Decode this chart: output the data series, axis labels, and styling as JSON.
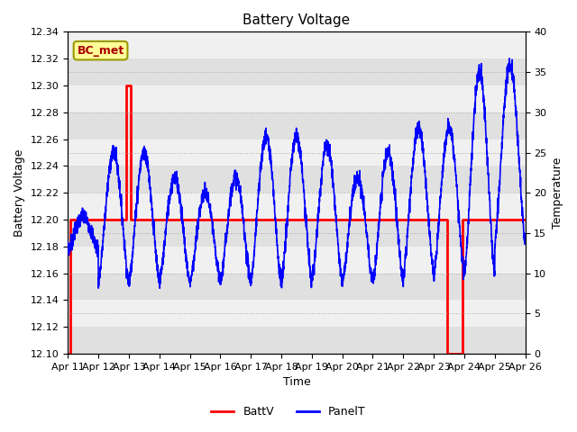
{
  "title": "Battery Voltage",
  "xlabel": "Time",
  "ylabel_left": "Battery Voltage",
  "ylabel_right": "Temperature",
  "xlim": [
    0,
    15
  ],
  "ylim_left": [
    12.1,
    12.32
  ],
  "ylim_right": [
    0,
    40
  ],
  "x_tick_labels": [
    "Apr 11",
    "Apr 12",
    "Apr 13",
    "Apr 14",
    "Apr 15",
    "Apr 16",
    "Apr 17",
    "Apr 18",
    "Apr 19",
    "Apr 20",
    "Apr 21",
    "Apr 22",
    "Apr 23",
    "Apr 24",
    "Apr 25",
    "Apr 26"
  ],
  "battv_steps": [
    [
      0.0,
      12.1
    ],
    [
      0.08,
      12.1
    ],
    [
      0.08,
      12.2
    ],
    [
      1.9,
      12.2
    ],
    [
      1.9,
      12.3
    ],
    [
      2.05,
      12.3
    ],
    [
      2.05,
      12.2
    ],
    [
      12.45,
      12.2
    ],
    [
      12.45,
      12.1
    ],
    [
      12.95,
      12.1
    ],
    [
      12.95,
      12.2
    ],
    [
      15.0,
      12.2
    ]
  ],
  "background_color": "#ffffff",
  "band_color_dark": "#e0e0e0",
  "band_color_light": "#f0f0f0",
  "title_fontsize": 11,
  "label_fontsize": 9,
  "tick_fontsize": 8,
  "annotation_text": "BC_met",
  "annotation_bbox_facecolor": "#ffff99",
  "annotation_bbox_edgecolor": "#999900",
  "annotation_text_color": "#aa0000",
  "legend_fontsize": 9,
  "battv_color": "red",
  "panelt_color": "blue",
  "battv_linewidth": 2.0,
  "panelt_linewidth": 1.2
}
